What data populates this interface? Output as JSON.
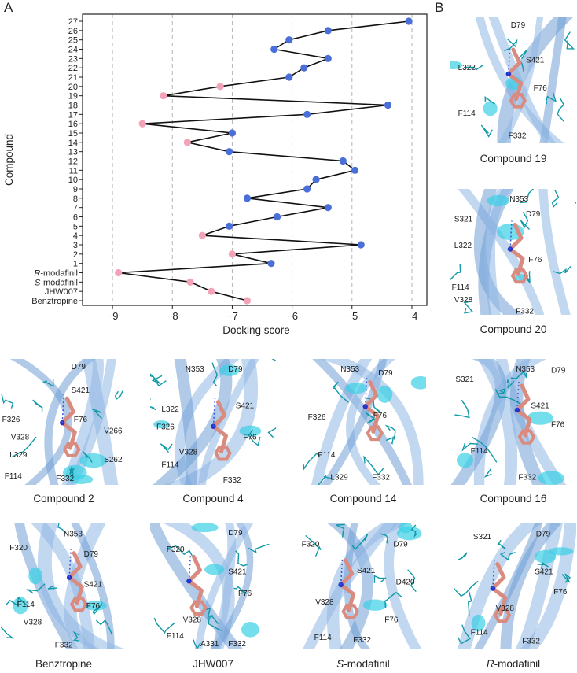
{
  "panel_labels": {
    "a": "A",
    "b": "B"
  },
  "chart_data": {
    "type": "line-scatter",
    "title": "",
    "xlabel": "Docking score",
    "ylabel": "Compound",
    "xlim": [
      -9.5,
      -3.75
    ],
    "xticks": [
      "−9",
      "−8",
      "−7",
      "−6",
      "−5",
      "−4"
    ],
    "xtick_values": [
      -9,
      -8,
      -7,
      -6,
      -5,
      -4
    ],
    "grid": "vertical dashed",
    "categories": [
      "27",
      "26",
      "25",
      "24",
      "23",
      "22",
      "21",
      "20",
      "19",
      "18",
      "17",
      "16",
      "15",
      "14",
      "13",
      "12",
      "11",
      "10",
      "9",
      "8",
      "7",
      "6",
      "5",
      "4",
      "3",
      "2",
      "1",
      "R-modafinil",
      "S-modafinil",
      "JHW007",
      "Benztropine"
    ],
    "category_labels": [
      {
        "prefix": "",
        "text": "27"
      },
      {
        "prefix": "",
        "text": "26"
      },
      {
        "prefix": "",
        "text": "25"
      },
      {
        "prefix": "",
        "text": "24"
      },
      {
        "prefix": "",
        "text": "23"
      },
      {
        "prefix": "",
        "text": "22"
      },
      {
        "prefix": "",
        "text": "21"
      },
      {
        "prefix": "",
        "text": "20"
      },
      {
        "prefix": "",
        "text": "19"
      },
      {
        "prefix": "",
        "text": "18"
      },
      {
        "prefix": "",
        "text": "17"
      },
      {
        "prefix": "",
        "text": "16"
      },
      {
        "prefix": "",
        "text": "15"
      },
      {
        "prefix": "",
        "text": "14"
      },
      {
        "prefix": "",
        "text": "13"
      },
      {
        "prefix": "",
        "text": "12"
      },
      {
        "prefix": "",
        "text": "11"
      },
      {
        "prefix": "",
        "text": "10"
      },
      {
        "prefix": "",
        "text": "9"
      },
      {
        "prefix": "",
        "text": "8"
      },
      {
        "prefix": "",
        "text": "7"
      },
      {
        "prefix": "",
        "text": "6"
      },
      {
        "prefix": "",
        "text": "5"
      },
      {
        "prefix": "",
        "text": "4"
      },
      {
        "prefix": "",
        "text": "3"
      },
      {
        "prefix": "",
        "text": "2"
      },
      {
        "prefix": "",
        "text": "1"
      },
      {
        "prefix": "R",
        "text": "-modafinil"
      },
      {
        "prefix": "S",
        "text": "-modafinil"
      },
      {
        "prefix": "",
        "text": "JHW007"
      },
      {
        "prefix": "",
        "text": "Benztropine"
      }
    ],
    "values": [
      -4.05,
      -5.4,
      -6.05,
      -6.3,
      -5.4,
      -5.8,
      -6.05,
      -7.2,
      -8.15,
      -4.4,
      -5.75,
      -8.5,
      -7.0,
      -7.75,
      -7.05,
      -5.15,
      -4.95,
      -5.6,
      -5.75,
      -6.75,
      -5.4,
      -6.25,
      -7.05,
      -7.5,
      -4.85,
      -7.0,
      -6.35,
      -8.9,
      -7.7,
      -7.35,
      -6.75
    ],
    "point_colors": [
      "blue",
      "blue",
      "blue",
      "blue",
      "blue",
      "blue",
      "blue",
      "pink",
      "pink",
      "blue",
      "blue",
      "pink",
      "blue",
      "pink",
      "blue",
      "blue",
      "blue",
      "blue",
      "blue",
      "blue",
      "blue",
      "blue",
      "blue",
      "pink",
      "blue",
      "pink",
      "blue",
      "pink",
      "pink",
      "pink",
      "pink"
    ],
    "colors": {
      "blue": "#4a6fd8",
      "pink": "#f2a3b8",
      "line": "#111111"
    }
  },
  "structures": [
    {
      "id": "compound-19",
      "caption": {
        "prefix": "",
        "text": "Compound 19"
      },
      "residues": [
        "D79",
        "S421",
        "L322",
        "F76",
        "F114",
        "F332"
      ]
    },
    {
      "id": "compound-20",
      "caption": {
        "prefix": "",
        "text": "Compound 20"
      },
      "residues": [
        "N353",
        "S321",
        "D79",
        "L322",
        "F76",
        "F114",
        "V328",
        "F332"
      ]
    },
    {
      "id": "compound-2",
      "caption": {
        "prefix": "",
        "text": "Compound 2"
      },
      "residues": [
        "D79",
        "S421",
        "F326",
        "F76",
        "V266",
        "V328",
        "L329",
        "S262",
        "F114",
        "F332"
      ]
    },
    {
      "id": "compound-4",
      "caption": {
        "prefix": "",
        "text": "Compound 4"
      },
      "residues": [
        "N353",
        "D79",
        "L322",
        "S421",
        "F326",
        "F76",
        "V328",
        "F114",
        "F332"
      ]
    },
    {
      "id": "compound-14",
      "caption": {
        "prefix": "",
        "text": "Compound 14"
      },
      "residues": [
        "N353",
        "D79",
        "F326",
        "F76",
        "F114",
        "L329",
        "F332"
      ]
    },
    {
      "id": "compound-16",
      "caption": {
        "prefix": "",
        "text": "Compound 16"
      },
      "residues": [
        "N353",
        "D79",
        "S321",
        "S421",
        "F76",
        "F114",
        "F332"
      ]
    },
    {
      "id": "benztropine",
      "caption": {
        "prefix": "",
        "text": "Benztropine"
      },
      "residues": [
        "N353",
        "F320",
        "D79",
        "S421",
        "F114",
        "F76",
        "V328",
        "F332"
      ]
    },
    {
      "id": "jhw007",
      "caption": {
        "prefix": "",
        "text": "JHW007"
      },
      "residues": [
        "D79",
        "F320",
        "S421",
        "F76",
        "V328",
        "F114",
        "A331",
        "F332"
      ]
    },
    {
      "id": "s-modafinil",
      "caption": {
        "prefix": "S",
        "text": "-modafinil"
      },
      "residues": [
        "F320",
        "D79",
        "S421",
        "D420",
        "V328",
        "F76",
        "F114",
        "F332"
      ]
    },
    {
      "id": "r-modafinil",
      "caption": {
        "prefix": "R",
        "text": "-modafinil"
      },
      "residues": [
        "S321",
        "D79",
        "S421",
        "F76",
        "V328",
        "F114",
        "F332"
      ]
    }
  ]
}
